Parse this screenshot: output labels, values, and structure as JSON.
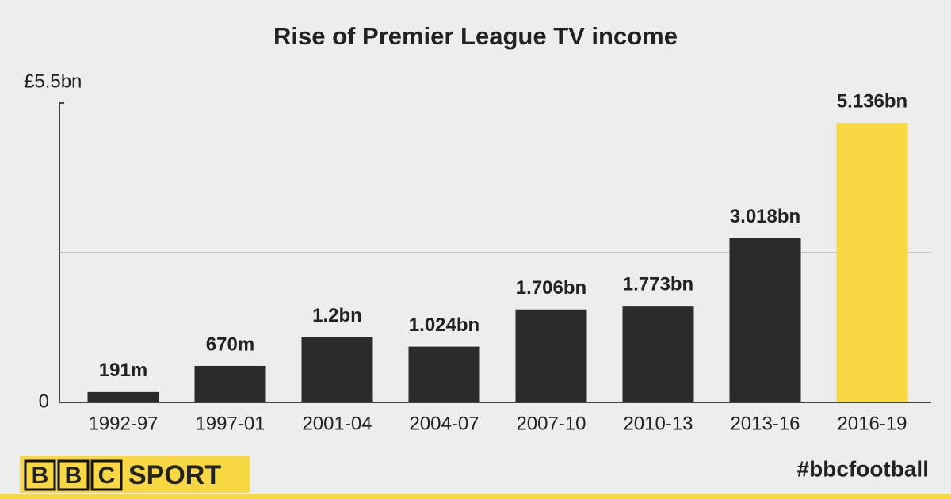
{
  "chart_data": {
    "type": "bar",
    "title": "Rise of Premier League TV income",
    "categories": [
      "1992-97",
      "1997-01",
      "2001-04",
      "2004-07",
      "2007-10",
      "2010-13",
      "2013-16",
      "2016-19"
    ],
    "values": [
      0.191,
      0.67,
      1.2,
      1.024,
      1.706,
      1.773,
      3.018,
      5.136
    ],
    "value_labels": [
      "191m",
      "670m",
      "1.2bn",
      "1.024bn",
      "1.706bn",
      "1.773bn",
      "3.018bn",
      "5.136bn"
    ],
    "colors": [
      "#2b2b2b",
      "#2b2b2b",
      "#2b2b2b",
      "#2b2b2b",
      "#2b2b2b",
      "#2b2b2b",
      "#2b2b2b",
      "#f7d842"
    ],
    "ylim": [
      0,
      5.5
    ],
    "yticks": [
      0,
      {
        "value": 2.75,
        "label": null
      },
      {
        "value": 5.5,
        "label": "£5.5bn"
      }
    ],
    "grid": true
  },
  "footer": {
    "brand_letters": [
      "B",
      "B",
      "C"
    ],
    "brand_word": "SPORT",
    "hashtag": "#bbcfootball"
  }
}
